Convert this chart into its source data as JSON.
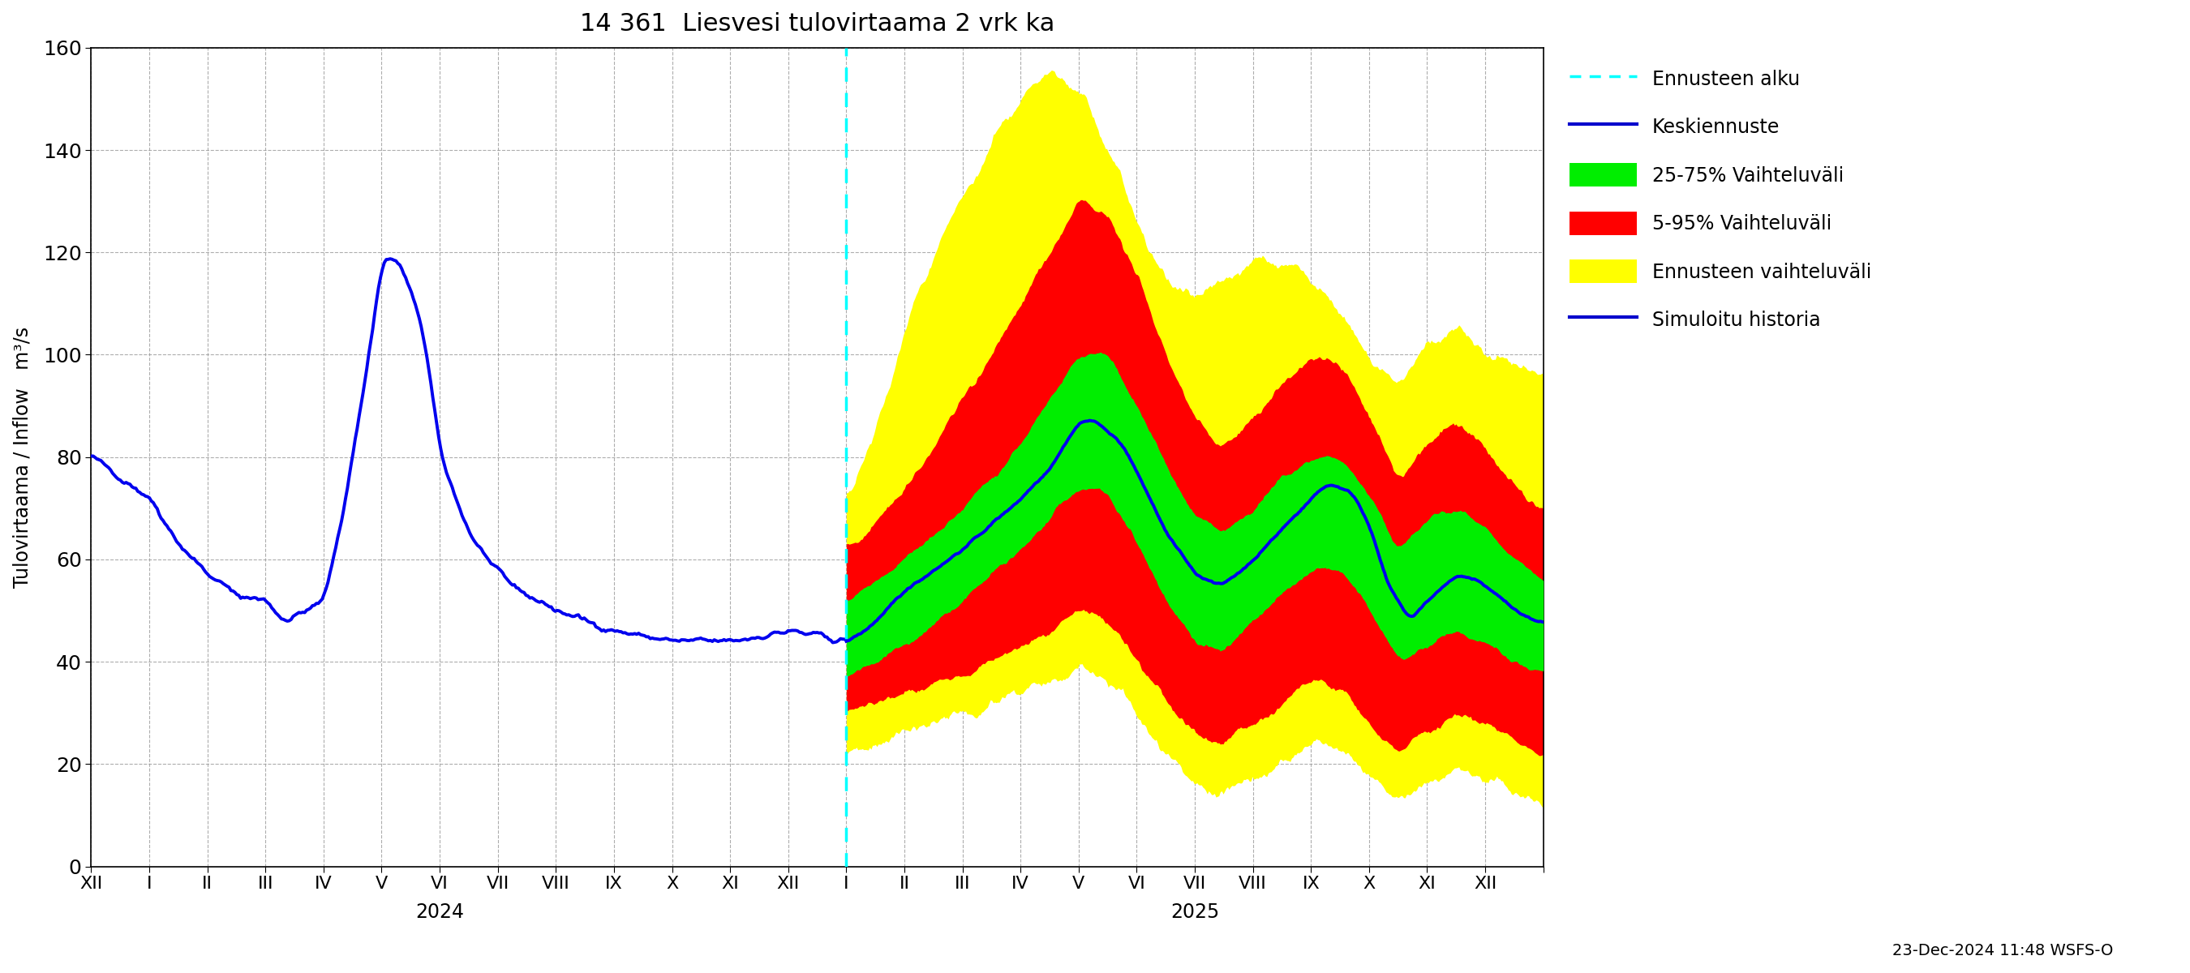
{
  "title": "14 361  Liesvesi tulovirtaama 2 vrk ka",
  "ylabel": "Tulovirtaama / Inflow   m³/s",
  "ylim": [
    0,
    160
  ],
  "yticks": [
    0,
    20,
    40,
    60,
    80,
    100,
    120,
    140,
    160
  ],
  "footer": "23-Dec-2024 11:48 WSFS-O",
  "colors": {
    "history_line": "#0000ee",
    "forecast_line": "#0000ee",
    "band_yellow": "#ffff00",
    "band_red": "#ff0000",
    "band_green": "#00ee00",
    "vline_cyan": "#00ffff",
    "grid": "#999999",
    "background": "#ffffff"
  },
  "hist_xp": [
    0,
    0.5,
    1.0,
    1.5,
    2.0,
    2.5,
    3.0,
    3.3,
    3.7,
    4.0,
    4.3,
    4.7,
    5.0,
    5.3,
    5.7,
    6.0,
    6.5,
    7.0,
    7.5,
    8.0,
    9.0,
    10.0,
    11.0,
    12.0,
    12.5,
    13.0
  ],
  "hist_fp": [
    80,
    76,
    72,
    63,
    57,
    53,
    52,
    48,
    50,
    52,
    68,
    95,
    119,
    118,
    105,
    80,
    65,
    57,
    53,
    50,
    46,
    44,
    44,
    46,
    45,
    44
  ],
  "fore_center_xp": [
    13.0,
    13.3,
    13.7,
    14.0,
    14.5,
    15.0,
    15.5,
    16.0,
    16.5,
    17.0,
    17.3,
    17.7,
    18.0,
    18.5,
    19.0,
    19.5,
    20.0,
    20.5,
    21.0,
    21.3,
    21.7,
    22.0,
    22.3,
    22.7,
    23.0,
    23.5,
    24.0,
    24.5,
    25.0
  ],
  "fore_center_fp": [
    44,
    46,
    50,
    54,
    58,
    62,
    67,
    72,
    78,
    87,
    87,
    83,
    77,
    65,
    57,
    55,
    60,
    66,
    72,
    75,
    73,
    67,
    55,
    48,
    52,
    57,
    55,
    50,
    47
  ],
  "green_upper_xp": [
    13.0,
    13.5,
    14.0,
    14.5,
    15.0,
    15.5,
    16.0,
    16.5,
    17.0,
    17.5,
    18.0,
    18.5,
    19.0,
    19.5,
    20.0,
    20.5,
    21.0,
    21.5,
    22.0,
    22.5,
    23.0,
    23.5,
    24.0,
    24.5,
    25.0
  ],
  "green_upper_fp": [
    52,
    55,
    60,
    65,
    70,
    76,
    83,
    91,
    100,
    100,
    90,
    78,
    68,
    65,
    70,
    76,
    80,
    80,
    72,
    62,
    68,
    70,
    66,
    60,
    56
  ],
  "green_lower_xp": [
    13.0,
    13.5,
    14.0,
    14.5,
    15.0,
    15.5,
    16.0,
    16.5,
    17.0,
    17.5,
    18.0,
    18.5,
    19.0,
    19.5,
    20.0,
    20.5,
    21.0,
    21.5,
    22.0,
    22.5,
    23.0,
    23.5,
    24.0,
    24.5,
    25.0
  ],
  "green_lower_fp": [
    38,
    40,
    43,
    47,
    52,
    57,
    62,
    68,
    74,
    73,
    63,
    52,
    44,
    42,
    48,
    53,
    58,
    58,
    50,
    40,
    43,
    46,
    44,
    40,
    38
  ],
  "red_upper_xp": [
    13.0,
    13.5,
    14.0,
    14.5,
    15.0,
    15.5,
    16.0,
    16.5,
    17.0,
    17.5,
    18.0,
    18.5,
    19.0,
    19.5,
    20.0,
    20.5,
    21.0,
    21.5,
    22.0,
    22.5,
    23.0,
    23.5,
    24.0,
    24.5,
    25.0
  ],
  "red_upper_fp": [
    62,
    67,
    74,
    82,
    92,
    100,
    110,
    120,
    130,
    128,
    115,
    100,
    87,
    82,
    88,
    94,
    100,
    98,
    88,
    75,
    83,
    87,
    82,
    74,
    68
  ],
  "red_lower_xp": [
    13.0,
    13.5,
    14.0,
    14.5,
    15.0,
    15.5,
    16.0,
    16.5,
    17.0,
    17.5,
    18.0,
    18.5,
    19.0,
    19.5,
    20.0,
    20.5,
    21.0,
    21.5,
    22.0,
    22.5,
    23.0,
    23.5,
    24.0,
    24.5,
    25.0
  ],
  "red_lower_fp": [
    30,
    32,
    34,
    36,
    38,
    40,
    43,
    46,
    50,
    48,
    40,
    32,
    26,
    24,
    28,
    32,
    36,
    35,
    28,
    22,
    26,
    29,
    28,
    25,
    22
  ],
  "yellow_upper_xp": [
    13.0,
    13.3,
    13.7,
    14.0,
    14.5,
    15.0,
    15.5,
    16.0,
    16.5,
    17.0,
    17.3,
    17.7,
    18.0,
    18.5,
    19.0,
    19.5,
    20.0,
    20.5,
    21.0,
    21.5,
    22.0,
    22.5,
    23.0,
    23.5,
    24.0,
    24.5,
    25.0
  ],
  "yellow_upper_fp": [
    72,
    80,
    92,
    105,
    120,
    132,
    142,
    150,
    155,
    152,
    145,
    135,
    125,
    115,
    112,
    115,
    118,
    118,
    115,
    108,
    100,
    95,
    102,
    105,
    100,
    98,
    95
  ],
  "yellow_lower_xp": [
    13.0,
    13.5,
    14.0,
    14.5,
    15.0,
    15.5,
    16.0,
    16.5,
    17.0,
    17.5,
    18.0,
    18.5,
    19.0,
    19.5,
    20.0,
    20.5,
    21.0,
    21.5,
    22.0,
    22.5,
    23.0,
    23.5,
    24.0,
    24.5,
    25.0
  ],
  "yellow_lower_fp": [
    22,
    24,
    26,
    28,
    30,
    32,
    34,
    36,
    38,
    37,
    30,
    22,
    16,
    14,
    17,
    20,
    24,
    23,
    18,
    13,
    16,
    18,
    17,
    15,
    13
  ],
  "forecast_start_x": 13.0,
  "xlim": [
    0,
    25
  ],
  "xtick_positions": [
    0,
    1,
    2,
    3,
    4,
    5,
    6,
    7,
    8,
    9,
    10,
    11,
    12,
    13,
    14,
    15,
    16,
    17,
    18,
    19,
    20,
    21,
    22,
    23,
    24,
    25
  ],
  "xtick_labels": [
    "XII",
    "I",
    "II",
    "III",
    "IV",
    "V",
    "VI",
    "VII",
    "VIII",
    "IX",
    "X",
    "XI",
    "XII",
    "I",
    "II",
    "III",
    "IV",
    "V",
    "VI",
    "VII",
    "VIII",
    "IX",
    "X",
    "XI",
    "XII",
    ""
  ],
  "year_2024_x": 6.0,
  "year_2025_x": 19.0
}
